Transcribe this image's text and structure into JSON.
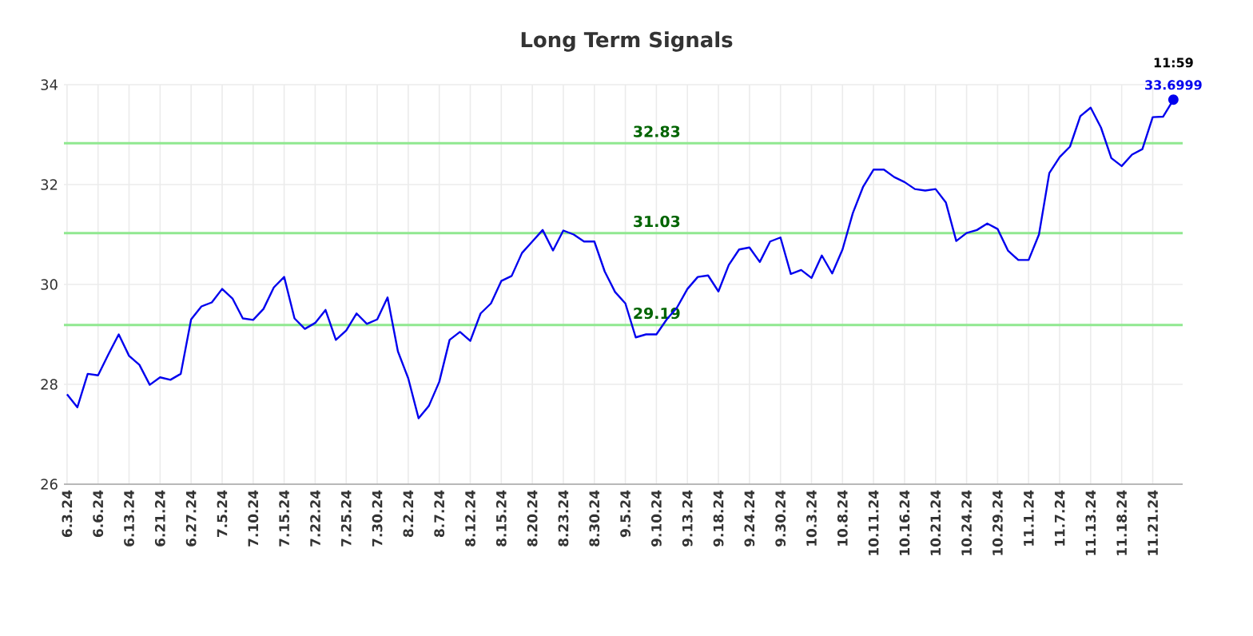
{
  "chart_data": {
    "type": "line",
    "title": "Long Term Signals",
    "categories": [
      "6.3.24",
      null,
      null,
      "6.6.24",
      null,
      null,
      "6.13.24",
      null,
      null,
      "6.21.24",
      null,
      null,
      "6.27.24",
      null,
      null,
      "7.5.24",
      null,
      null,
      "7.10.24",
      null,
      null,
      "7.15.24",
      null,
      null,
      "7.22.24",
      null,
      null,
      "7.25.24",
      null,
      null,
      "7.30.24",
      null,
      null,
      "8.2.24",
      null,
      null,
      "8.7.24",
      null,
      null,
      "8.12.24",
      null,
      null,
      "8.15.24",
      null,
      null,
      "8.20.24",
      null,
      null,
      "8.23.24",
      null,
      null,
      "8.30.24",
      null,
      null,
      "9.5.24",
      null,
      null,
      "9.10.24",
      null,
      null,
      "9.13.24",
      null,
      null,
      "9.18.24",
      null,
      null,
      "9.24.24",
      null,
      null,
      "9.30.24",
      null,
      null,
      "10.3.24",
      null,
      null,
      "10.8.24",
      null,
      null,
      "10.11.24",
      null,
      null,
      "10.16.24",
      null,
      null,
      "10.21.24",
      null,
      null,
      "10.24.24",
      null,
      null,
      "10.29.24",
      null,
      null,
      "11.1.24",
      null,
      null,
      "11.7.24",
      null,
      null,
      "11.13.24",
      null,
      null,
      "11.18.24",
      null,
      null,
      "11.21.24",
      null,
      null
    ],
    "series": [
      {
        "color": "#0000ee",
        "values": [
          27.8,
          27.54,
          28.21,
          28.18,
          28.6,
          29.0,
          28.57,
          28.39,
          27.99,
          28.14,
          28.09,
          28.21,
          29.3,
          29.56,
          29.64,
          29.91,
          29.72,
          29.32,
          29.29,
          29.51,
          29.94,
          30.15,
          29.32,
          29.11,
          29.23,
          29.49,
          28.89,
          29.08,
          29.42,
          29.21,
          29.3,
          29.74,
          28.66,
          28.12,
          27.32,
          27.57,
          28.05,
          28.89,
          29.05,
          28.87,
          29.42,
          29.62,
          30.07,
          30.17,
          30.63,
          30.86,
          31.09,
          30.68,
          31.08,
          31.0,
          30.86,
          30.86,
          30.26,
          29.85,
          29.62,
          28.94,
          29.0,
          29.0,
          29.3,
          29.54,
          29.91,
          30.15,
          30.18,
          29.86,
          30.39,
          30.7,
          30.74,
          30.45,
          30.86,
          30.94,
          30.21,
          30.29,
          30.13,
          30.58,
          30.22,
          30.7,
          31.43,
          31.96,
          32.3,
          32.3,
          32.15,
          32.05,
          31.91,
          31.88,
          31.91,
          31.64,
          30.87,
          31.03,
          31.09,
          31.22,
          31.11,
          30.68,
          30.49,
          30.49,
          31.0,
          32.23,
          32.55,
          32.76,
          33.37,
          33.54,
          33.14,
          32.53,
          32.37,
          32.6,
          32.71,
          33.35,
          33.36,
          33.6999
        ]
      }
    ],
    "ylim": [
      26,
      34
    ],
    "yticks": [
      26,
      28,
      30,
      32,
      34
    ],
    "grid": true,
    "marker": "none",
    "line_style": "solid",
    "ref_lines": [
      {
        "axis": "y",
        "value": 32.83,
        "label": "32.83",
        "color": "#90e890"
      },
      {
        "axis": "y",
        "value": 31.03,
        "label": "31.03",
        "color": "#90e890"
      },
      {
        "axis": "y",
        "value": 29.19,
        "label": "29.19",
        "color": "#90e890"
      }
    ],
    "annotations": [
      "11:59",
      {
        "text": "33.6999",
        "y": 33.6999
      }
    ]
  }
}
